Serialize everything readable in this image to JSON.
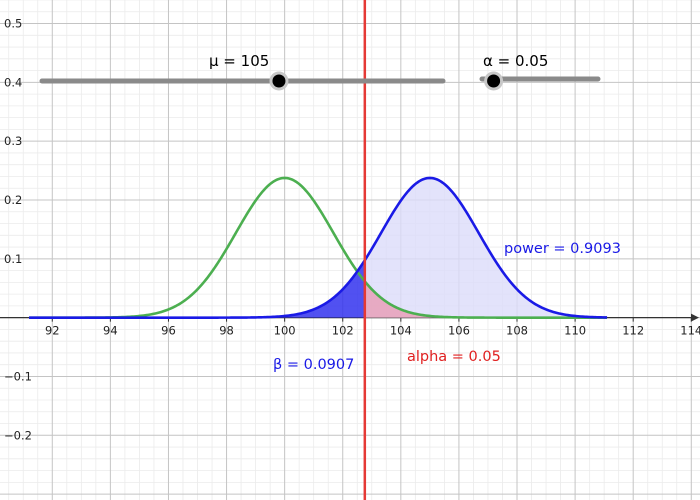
{
  "sliders": {
    "mu": {
      "label": "μ = 105",
      "value": 105,
      "min": 92,
      "max": 114
    },
    "alpha": {
      "label": "α = 0.05",
      "value": 0.05,
      "min": 0,
      "max": 0.5
    }
  },
  "annotations": {
    "power": "power = 0.9093",
    "beta": "β = 0.0907",
    "alpha": "alpha = 0.05"
  },
  "colors": {
    "null_curve": "#4caf50",
    "alt_curve": "#1a1ae6",
    "critical_line": "#e53935",
    "beta_fill": "#3333ee",
    "power_fill": "#dcdcfa",
    "alpha_fill": "#e8a0b8",
    "annot_blue": "#1a1ae6",
    "annot_red": "#e02020"
  },
  "chart_data": {
    "type": "line",
    "xlim": [
      90.2,
      114.3
    ],
    "ylim": [
      -0.31,
      0.54
    ],
    "x_ticks": [
      "92",
      "94",
      "96",
      "98",
      "100",
      "102",
      "104",
      "106",
      "108",
      "110",
      "112",
      "114"
    ],
    "y_ticks": [
      {
        "label": "0.5",
        "value": 0.5
      },
      {
        "label": "0.4",
        "value": 0.4
      },
      {
        "label": "0.3",
        "value": 0.3
      },
      {
        "label": "0.2",
        "value": 0.2
      },
      {
        "label": "0.1",
        "value": 0.1
      },
      {
        "label": "−0.1",
        "value": -0.1
      },
      {
        "label": "−0.2",
        "value": -0.2
      }
    ],
    "series": [
      {
        "mean": 100,
        "sd": 1.68,
        "x_range": [
          91.2,
          111.1
        ]
      },
      {
        "mean": 105,
        "sd": 1.68,
        "x_range": [
          91.2,
          111.1
        ]
      }
    ],
    "critical_x": 102.76
  }
}
